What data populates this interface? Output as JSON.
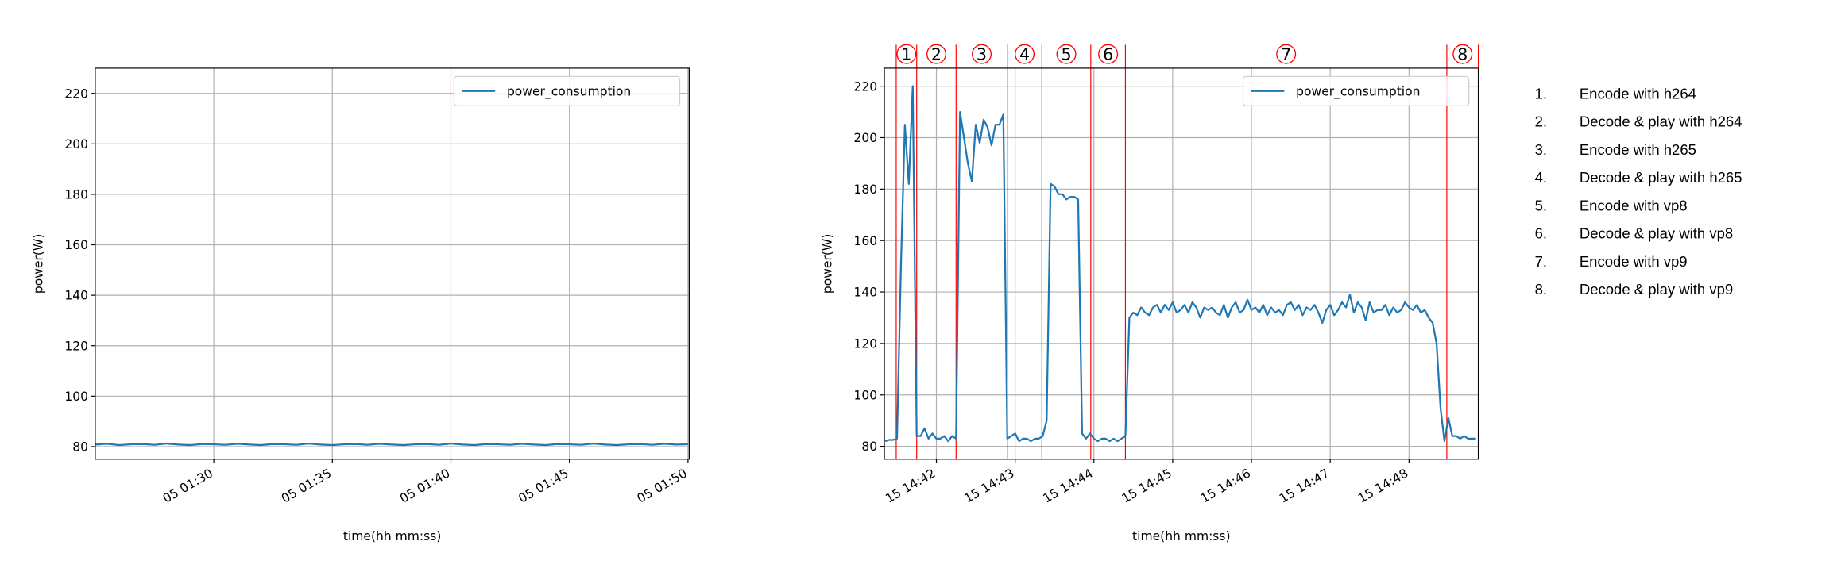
{
  "chart_data": [
    {
      "type": "line",
      "y_label": "power(W)",
      "x_label": "time(hh mm:ss)",
      "x": [
        85,
        85.5,
        86,
        86.5,
        87,
        87.5,
        88,
        88.5,
        89,
        89.5,
        90,
        90.5,
        91,
        91.5,
        92,
        92.5,
        93,
        93.5,
        94,
        94.5,
        95,
        95.5,
        96,
        96.5,
        97,
        97.5,
        98,
        98.5,
        99,
        99.5,
        100,
        100.5,
        101,
        101.5,
        102,
        102.5,
        103,
        103.5,
        104,
        104.5,
        105,
        105.5,
        106,
        106.5,
        107,
        107.5,
        108,
        108.5,
        109,
        109.5,
        110
      ],
      "series": [
        {
          "name": "power_consumption",
          "color": "#1f77b4",
          "values": [
            80.8,
            81.1,
            80.6,
            80.9,
            81.0,
            80.7,
            81.2,
            80.8,
            80.6,
            81.0,
            80.9,
            80.7,
            81.1,
            80.8,
            80.6,
            81.0,
            80.9,
            80.7,
            81.2,
            80.8,
            80.6,
            80.9,
            81.0,
            80.7,
            81.1,
            80.8,
            80.6,
            80.9,
            81.0,
            80.7,
            81.2,
            80.8,
            80.6,
            81.0,
            80.9,
            80.7,
            81.1,
            80.8,
            80.6,
            81.0,
            80.9,
            80.7,
            81.2,
            80.8,
            80.6,
            80.9,
            81.0,
            80.7,
            81.1,
            80.8,
            80.9
          ]
        }
      ],
      "xlim": [
        85,
        110.05
      ],
      "xticks": [
        {
          "value": 90,
          "label": "05 01:30"
        },
        {
          "value": 95,
          "label": "05 01:35"
        },
        {
          "value": 100,
          "label": "05 01:40"
        },
        {
          "value": 105,
          "label": "05 01:45"
        },
        {
          "value": 110,
          "label": "05 01:50"
        }
      ],
      "ylim": [
        75,
        230
      ],
      "yticks": [
        80,
        100,
        120,
        140,
        160,
        180,
        200,
        220
      ],
      "grid": true,
      "legend": "upper right"
    },
    {
      "type": "line",
      "y_label": "power(W)",
      "x_label": "time(hh mm:ss)",
      "x": [
        881.35,
        881.4,
        881.45,
        881.5,
        881.55,
        881.6,
        881.65,
        881.7,
        881.75,
        881.8,
        881.85,
        881.9,
        881.95,
        882,
        882.05,
        882.1,
        882.15,
        882.2,
        882.25,
        882.3,
        882.35,
        882.4,
        882.45,
        882.5,
        882.55,
        882.6,
        882.65,
        882.7,
        882.75,
        882.8,
        882.85,
        882.9,
        882.95,
        883,
        883.05,
        883.1,
        883.15,
        883.2,
        883.25,
        883.3,
        883.35,
        883.4,
        883.45,
        883.5,
        883.55,
        883.6,
        883.65,
        883.7,
        883.75,
        883.8,
        883.85,
        883.9,
        883.95,
        884,
        884.05,
        884.1,
        884.15,
        884.2,
        884.25,
        884.3,
        884.35,
        884.4,
        884.45,
        884.5,
        884.55,
        884.6,
        884.65,
        884.7,
        884.75,
        884.8,
        884.85,
        884.9,
        884.95,
        885,
        885.05,
        885.1,
        885.15,
        885.2,
        885.25,
        885.3,
        885.35,
        885.4,
        885.45,
        885.5,
        885.55,
        885.6,
        885.65,
        885.7,
        885.75,
        885.8,
        885.85,
        885.9,
        885.95,
        886,
        886.05,
        886.1,
        886.15,
        886.2,
        886.25,
        886.3,
        886.35,
        886.4,
        886.45,
        886.5,
        886.55,
        886.6,
        886.65,
        886.7,
        886.75,
        886.8,
        886.85,
        886.9,
        886.95,
        887,
        887.05,
        887.1,
        887.15,
        887.2,
        887.25,
        887.3,
        887.35,
        887.4,
        887.45,
        887.5,
        887.55,
        887.6,
        887.65,
        887.7,
        887.75,
        887.8,
        887.85,
        887.9,
        887.95,
        888,
        888.05,
        888.1,
        888.15,
        888.2,
        888.25,
        888.3,
        888.35,
        888.4,
        888.45,
        888.5,
        888.55,
        888.6,
        888.65,
        888.7,
        888.75,
        888.8,
        888.85
      ],
      "series": [
        {
          "name": "power_consumption",
          "color": "#1f77b4",
          "values": [
            82,
            82.5,
            82.5,
            83,
            150,
            205,
            182,
            220,
            84,
            84,
            87,
            83,
            85,
            83,
            83,
            84,
            82,
            84,
            83,
            210,
            200,
            190,
            183,
            205,
            198,
            207,
            204,
            197,
            205,
            205,
            209,
            83,
            84,
            85,
            82,
            83,
            83,
            82,
            83,
            83,
            84,
            90,
            182,
            181,
            178,
            178,
            176,
            177,
            177,
            176,
            85,
            83,
            85,
            83,
            82,
            83,
            83,
            82,
            83,
            82,
            83,
            84,
            130,
            132,
            131,
            134,
            132,
            131,
            134,
            135,
            132,
            135,
            133,
            136,
            132,
            133,
            135,
            132,
            136,
            134,
            130,
            134,
            133,
            134,
            132,
            131,
            135,
            130,
            134,
            136,
            132,
            133,
            137,
            133,
            134,
            132,
            135,
            131,
            134,
            132,
            133,
            131,
            135,
            136,
            133,
            135,
            131,
            134,
            133,
            135,
            132,
            128,
            133,
            135,
            131,
            133,
            136,
            134,
            139,
            132,
            136,
            134,
            129,
            136,
            132,
            133,
            133,
            135,
            131,
            134,
            132,
            133,
            136,
            134,
            133,
            135,
            132,
            133,
            130,
            128,
            120,
            95,
            82,
            91,
            84,
            84,
            83,
            84,
            83,
            83,
            83
          ]
        }
      ],
      "xlim": [
        881.34,
        888.88
      ],
      "xticks": [
        {
          "value": 882,
          "label": "15 14:42"
        },
        {
          "value": 883,
          "label": "15 14:43"
        },
        {
          "value": 884,
          "label": "15 14:44"
        },
        {
          "value": 885,
          "label": "15 14:45"
        },
        {
          "value": 886,
          "label": "15 14:46"
        },
        {
          "value": 887,
          "label": "15 14:47"
        },
        {
          "value": 888,
          "label": "15 14:48"
        }
      ],
      "ylim": [
        75,
        227
      ],
      "yticks": [
        80,
        100,
        120,
        140,
        160,
        180,
        200,
        220
      ],
      "grid": true,
      "legend": "upper right",
      "region_bounds": [
        881.49,
        881.75,
        882.25,
        882.9,
        883.34,
        883.96,
        884.4,
        888.48,
        888.88
      ],
      "region_color": "#ff0000",
      "region_labels": [
        "1",
        "2",
        "3",
        "4",
        "5",
        "6",
        "7",
        "8"
      ]
    }
  ],
  "region_legend": [
    {
      "number": "1.",
      "text": "Encode with h264"
    },
    {
      "number": "2.",
      "text": "Decode & play with h264"
    },
    {
      "number": "3.",
      "text": "Encode with h265"
    },
    {
      "number": "4.",
      "text": "Decode & play with h265"
    },
    {
      "number": "5.",
      "text": "Encode with vp8"
    },
    {
      "number": "6.",
      "text": "Decode & play with vp8"
    },
    {
      "number": "7.",
      "text": "Encode with vp9"
    },
    {
      "number": "8.",
      "text": "Decode & play with vp9"
    }
  ]
}
